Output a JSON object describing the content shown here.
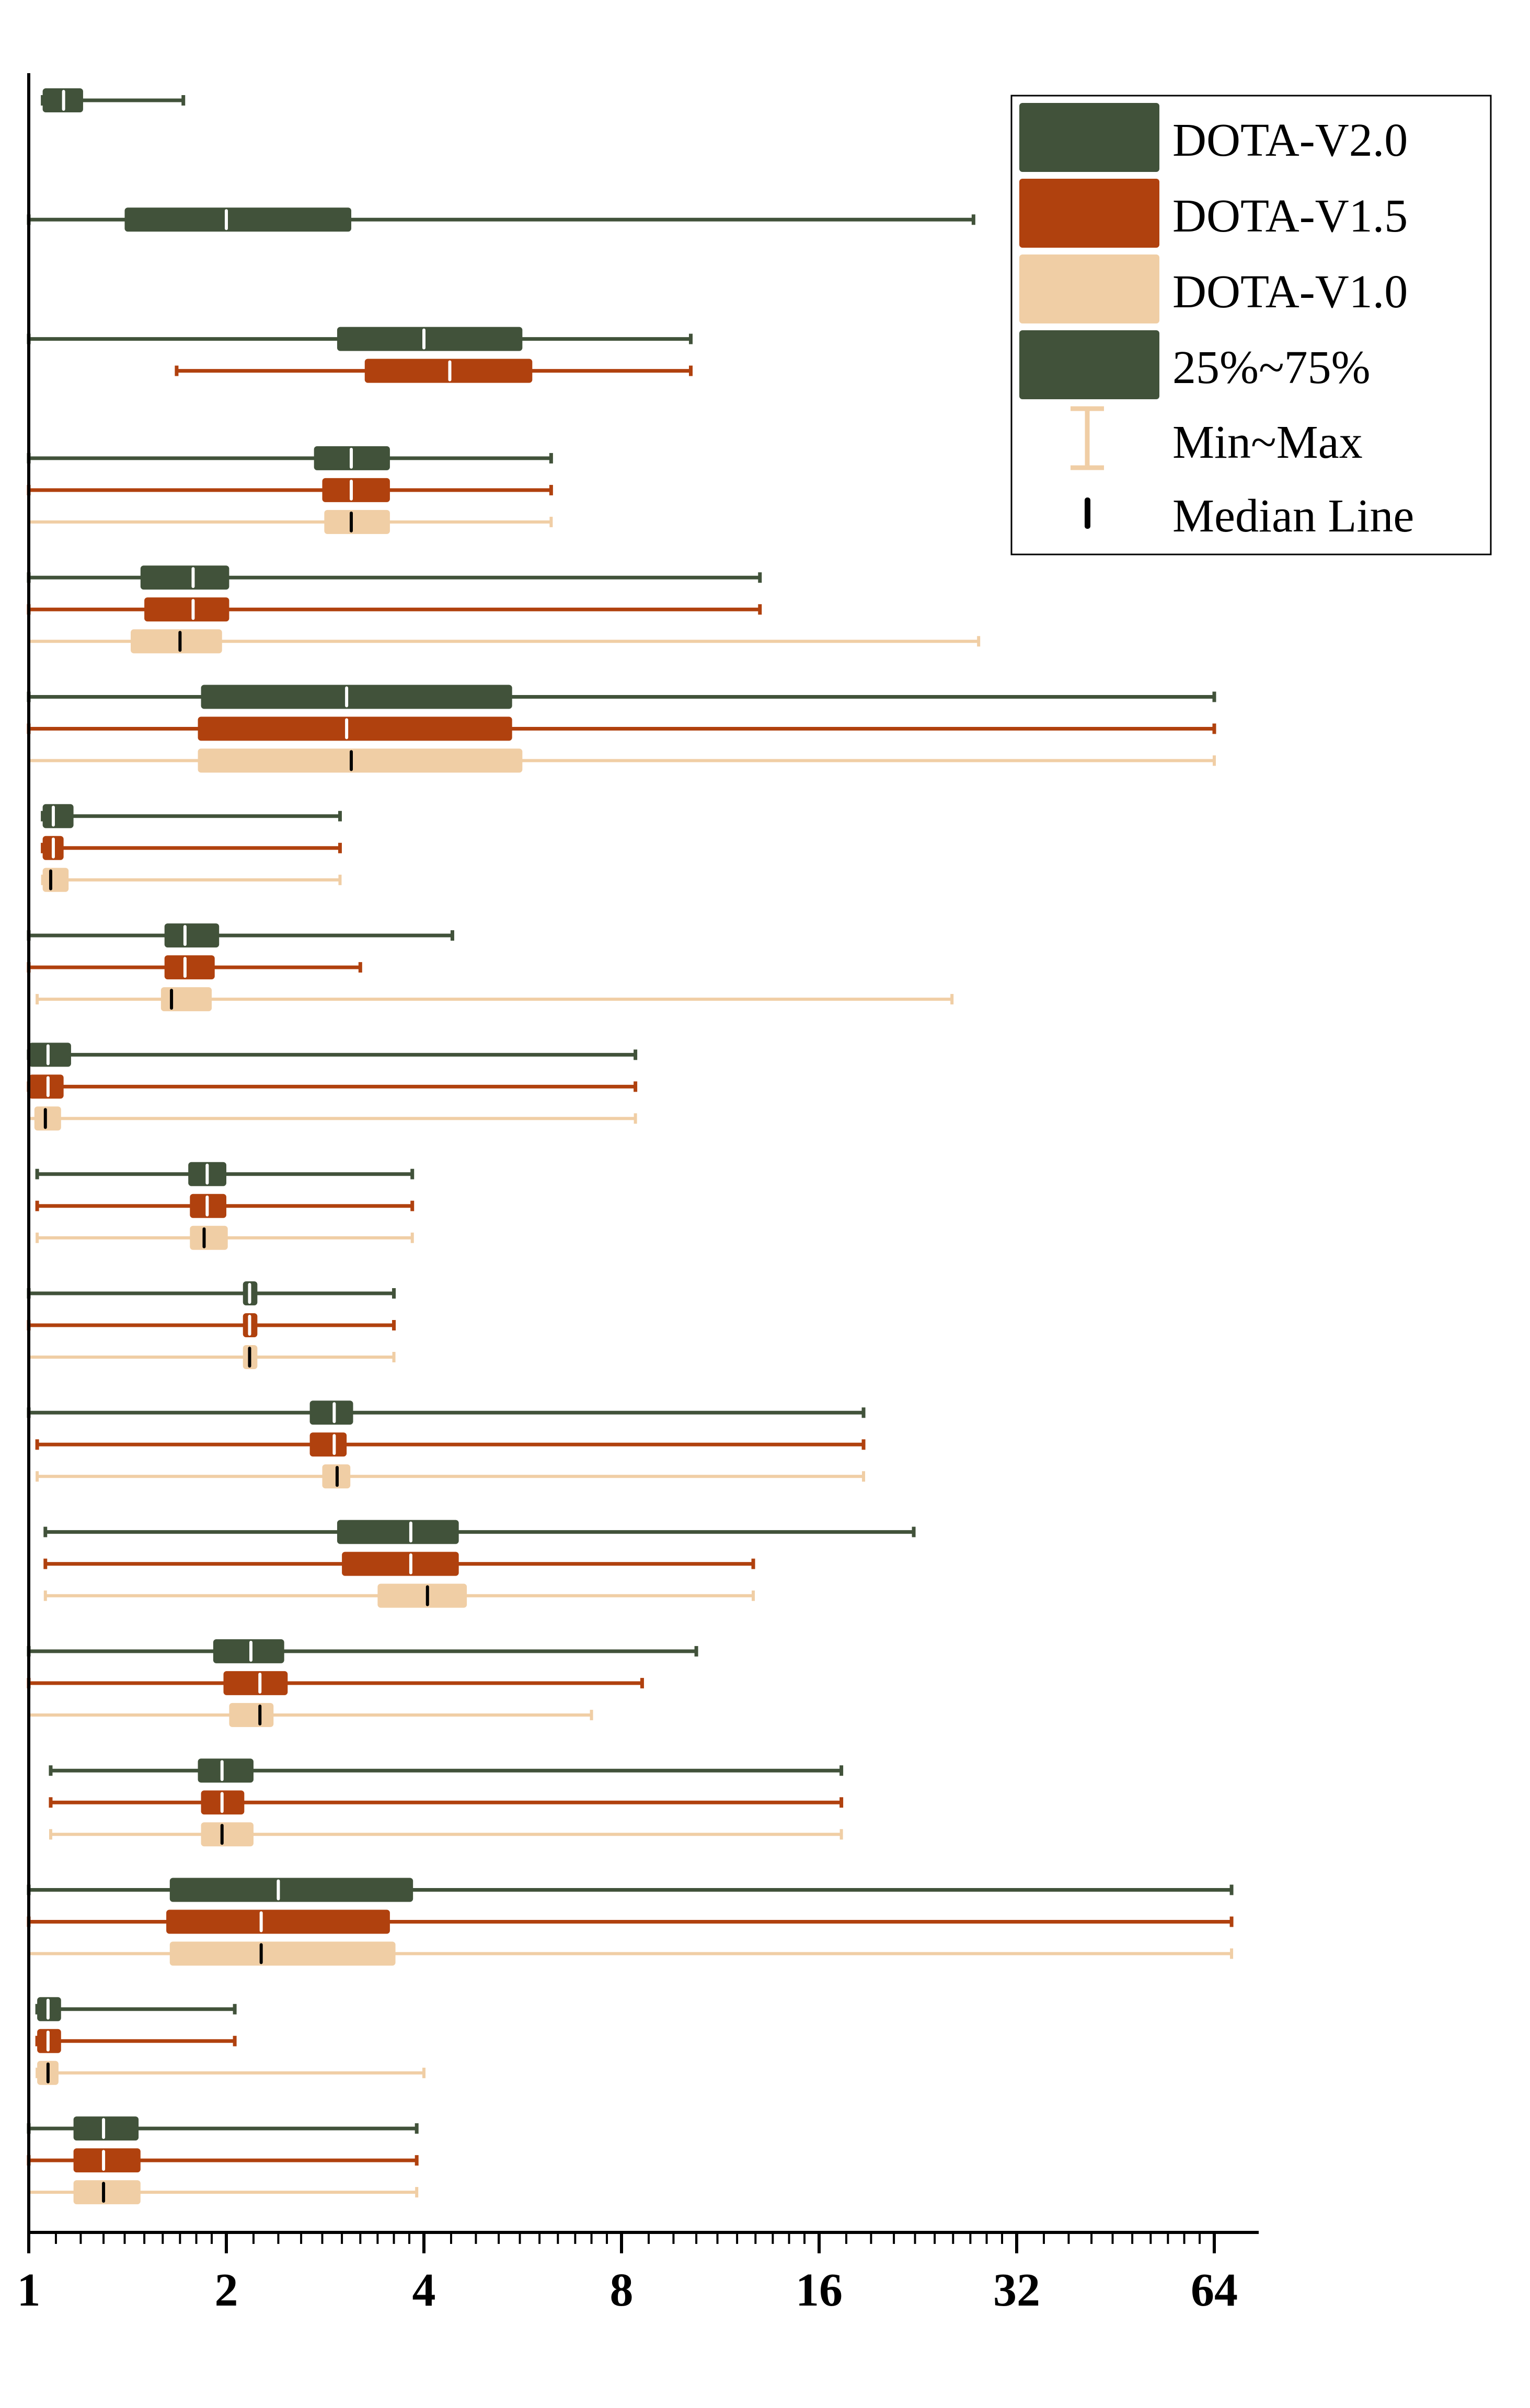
{
  "chart_data": {
    "type": "box",
    "orientation": "horizontal",
    "xscale": "log2",
    "xlim": [
      1,
      70
    ],
    "xticks": [
      1,
      2,
      4,
      8,
      16,
      32,
      64
    ],
    "xtick_labels": [
      "1",
      "2",
      "4",
      "8",
      "16",
      "32",
      "64"
    ],
    "colors": {
      "DOTA-V2.0": "#41523a",
      "DOTA-V1.5": "#b0410e",
      "DOTA-V1.0": "#f0cea5",
      "median_on_dark": "#ffffff",
      "median_on_light": "#000000"
    },
    "legend": {
      "position": "top-right",
      "entries": [
        "DOTA-V2.0",
        "DOTA-V1.5",
        "DOTA-V1.0",
        "25%~75%",
        "Min~Max",
        "Median Line"
      ]
    },
    "groups": [
      {
        "boxes": [
          {
            "series": "DOTA-V2.0",
            "min": 1.05,
            "q1": 1.05,
            "median": 1.13,
            "q3": 1.21,
            "max": 1.72
          }
        ]
      },
      {
        "boxes": [
          {
            "series": "DOTA-V2.0",
            "min": 1.0,
            "q1": 1.4,
            "median": 2.0,
            "q3": 3.1,
            "max": 27.5
          }
        ]
      },
      {
        "boxes": [
          {
            "series": "DOTA-V2.0",
            "min": 1.0,
            "q1": 2.95,
            "median": 4.0,
            "q3": 5.65,
            "max": 10.2
          },
          {
            "series": "DOTA-V1.5",
            "min": 1.68,
            "q1": 3.25,
            "median": 4.38,
            "q3": 5.85,
            "max": 10.2
          }
        ]
      },
      {
        "boxes": [
          {
            "series": "DOTA-V2.0",
            "min": 1.0,
            "q1": 2.72,
            "median": 3.1,
            "q3": 3.55,
            "max": 6.25
          },
          {
            "series": "DOTA-V1.5",
            "min": 1.0,
            "q1": 2.8,
            "median": 3.1,
            "q3": 3.55,
            "max": 6.25
          },
          {
            "series": "DOTA-V1.0",
            "min": 1.0,
            "q1": 2.82,
            "median": 3.1,
            "q3": 3.55,
            "max": 6.25
          }
        ]
      },
      {
        "boxes": [
          {
            "series": "DOTA-V2.0",
            "min": 1.0,
            "q1": 1.48,
            "median": 1.78,
            "q3": 2.02,
            "max": 13.0
          },
          {
            "series": "DOTA-V1.5",
            "min": 1.0,
            "q1": 1.5,
            "median": 1.78,
            "q3": 2.02,
            "max": 13.0
          },
          {
            "series": "DOTA-V1.0",
            "min": 1.0,
            "q1": 1.43,
            "median": 1.7,
            "q3": 1.97,
            "max": 28.0
          }
        ]
      },
      {
        "boxes": [
          {
            "series": "DOTA-V2.0",
            "min": 1.0,
            "q1": 1.83,
            "median": 3.05,
            "q3": 5.45,
            "max": 64.0
          },
          {
            "series": "DOTA-V1.5",
            "min": 1.0,
            "q1": 1.81,
            "median": 3.05,
            "q3": 5.45,
            "max": 64.0
          },
          {
            "series": "DOTA-V1.0",
            "min": 1.0,
            "q1": 1.81,
            "median": 3.1,
            "q3": 5.65,
            "max": 64.0
          }
        ]
      },
      {
        "boxes": [
          {
            "series": "DOTA-V2.0",
            "min": 1.05,
            "q1": 1.05,
            "median": 1.09,
            "q3": 1.17,
            "max": 2.98
          },
          {
            "series": "DOTA-V1.5",
            "min": 1.05,
            "q1": 1.05,
            "median": 1.09,
            "q3": 1.13,
            "max": 2.98
          },
          {
            "series": "DOTA-V1.0",
            "min": 1.05,
            "q1": 1.05,
            "median": 1.08,
            "q3": 1.15,
            "max": 2.98
          }
        ]
      },
      {
        "boxes": [
          {
            "series": "DOTA-V2.0",
            "min": 1.0,
            "q1": 1.61,
            "median": 1.73,
            "q3": 1.95,
            "max": 4.42
          },
          {
            "series": "DOTA-V1.5",
            "min": 1.0,
            "q1": 1.61,
            "median": 1.73,
            "q3": 1.92,
            "max": 3.2
          },
          {
            "series": "DOTA-V1.0",
            "min": 1.03,
            "q1": 1.59,
            "median": 1.65,
            "q3": 1.9,
            "max": 25.5
          }
        ]
      },
      {
        "boxes": [
          {
            "series": "DOTA-V2.0",
            "min": 1.0,
            "q1": 1.0,
            "median": 1.07,
            "q3": 1.16,
            "max": 8.4
          },
          {
            "series": "DOTA-V1.5",
            "min": 1.0,
            "q1": 1.0,
            "median": 1.07,
            "q3": 1.13,
            "max": 8.4
          },
          {
            "series": "DOTA-V1.0",
            "min": 1.0,
            "q1": 1.02,
            "median": 1.06,
            "q3": 1.12,
            "max": 8.4
          }
        ]
      },
      {
        "boxes": [
          {
            "series": "DOTA-V2.0",
            "min": 1.03,
            "q1": 1.75,
            "median": 1.87,
            "q3": 2.0,
            "max": 3.84
          },
          {
            "series": "DOTA-V1.5",
            "min": 1.03,
            "q1": 1.76,
            "median": 1.87,
            "q3": 2.0,
            "max": 3.84
          },
          {
            "series": "DOTA-V1.0",
            "min": 1.03,
            "q1": 1.76,
            "median": 1.85,
            "q3": 2.01,
            "max": 3.84
          }
        ]
      },
      {
        "boxes": [
          {
            "series": "DOTA-V2.0",
            "min": 1.0,
            "q1": 2.12,
            "median": 2.17,
            "q3": 2.23,
            "max": 3.6
          },
          {
            "series": "DOTA-V1.5",
            "min": 1.0,
            "q1": 2.12,
            "median": 2.17,
            "q3": 2.23,
            "max": 3.6
          },
          {
            "series": "DOTA-V1.0",
            "min": 1.0,
            "q1": 2.12,
            "median": 2.17,
            "q3": 2.23,
            "max": 3.6
          }
        ]
      },
      {
        "boxes": [
          {
            "series": "DOTA-V2.0",
            "min": 1.0,
            "q1": 2.68,
            "median": 2.92,
            "q3": 3.12,
            "max": 18.7
          },
          {
            "series": "DOTA-V1.5",
            "min": 1.03,
            "q1": 2.68,
            "median": 2.92,
            "q3": 3.05,
            "max": 18.7
          },
          {
            "series": "DOTA-V1.0",
            "min": 1.03,
            "q1": 2.8,
            "median": 2.95,
            "q3": 3.09,
            "max": 18.7
          }
        ]
      },
      {
        "boxes": [
          {
            "series": "DOTA-V2.0",
            "min": 1.06,
            "q1": 2.95,
            "median": 3.82,
            "q3": 4.52,
            "max": 22.3
          },
          {
            "series": "DOTA-V1.5",
            "min": 1.06,
            "q1": 3.0,
            "median": 3.82,
            "q3": 4.52,
            "max": 12.7
          },
          {
            "series": "DOTA-V1.0",
            "min": 1.06,
            "q1": 3.4,
            "median": 4.05,
            "q3": 4.65,
            "max": 12.7
          }
        ]
      },
      {
        "boxes": [
          {
            "series": "DOTA-V2.0",
            "min": 1.0,
            "q1": 1.91,
            "median": 2.18,
            "q3": 2.45,
            "max": 10.4
          },
          {
            "series": "DOTA-V1.5",
            "min": 1.0,
            "q1": 1.98,
            "median": 2.25,
            "q3": 2.48,
            "max": 8.6
          },
          {
            "series": "DOTA-V1.0",
            "min": 1.0,
            "q1": 2.02,
            "median": 2.25,
            "q3": 2.36,
            "max": 7.2
          }
        ]
      },
      {
        "boxes": [
          {
            "series": "DOTA-V2.0",
            "min": 1.08,
            "q1": 1.81,
            "median": 1.97,
            "q3": 2.2,
            "max": 17.3
          },
          {
            "series": "DOTA-V1.5",
            "min": 1.08,
            "q1": 1.83,
            "median": 1.97,
            "q3": 2.13,
            "max": 17.3
          },
          {
            "series": "DOTA-V1.0",
            "min": 1.08,
            "q1": 1.83,
            "median": 1.97,
            "q3": 2.2,
            "max": 17.3
          }
        ]
      },
      {
        "boxes": [
          {
            "series": "DOTA-V2.0",
            "min": 1.0,
            "q1": 1.64,
            "median": 2.4,
            "q3": 3.85,
            "max": 68.0
          },
          {
            "series": "DOTA-V1.5",
            "min": 1.0,
            "q1": 1.62,
            "median": 2.26,
            "q3": 3.55,
            "max": 68.0
          },
          {
            "series": "DOTA-V1.0",
            "min": 1.0,
            "q1": 1.64,
            "median": 2.26,
            "q3": 3.62,
            "max": 68.0
          }
        ]
      },
      {
        "boxes": [
          {
            "series": "DOTA-V2.0",
            "min": 1.03,
            "q1": 1.03,
            "median": 1.07,
            "q3": 1.12,
            "max": 2.06
          },
          {
            "series": "DOTA-V1.5",
            "min": 1.03,
            "q1": 1.03,
            "median": 1.07,
            "q3": 1.12,
            "max": 2.06
          },
          {
            "series": "DOTA-V1.0",
            "min": 1.03,
            "q1": 1.03,
            "median": 1.07,
            "q3": 1.11,
            "max": 4.0
          }
        ]
      },
      {
        "boxes": [
          {
            "series": "DOTA-V2.0",
            "min": 1.0,
            "q1": 1.17,
            "median": 1.3,
            "q3": 1.47,
            "max": 3.9
          },
          {
            "series": "DOTA-V1.5",
            "min": 1.0,
            "q1": 1.17,
            "median": 1.3,
            "q3": 1.48,
            "max": 3.9
          },
          {
            "series": "DOTA-V1.0",
            "min": 1.0,
            "q1": 1.17,
            "median": 1.3,
            "q3": 1.48,
            "max": 3.9
          }
        ]
      }
    ]
  }
}
